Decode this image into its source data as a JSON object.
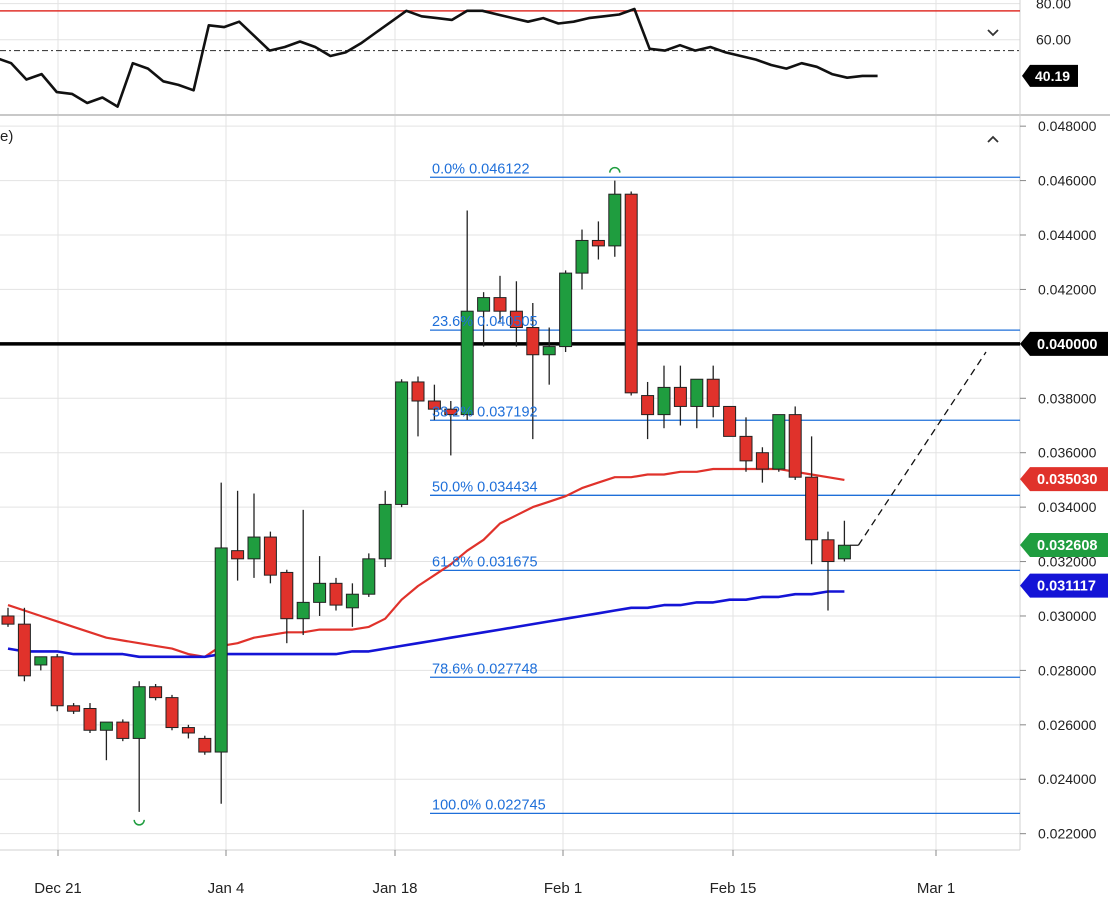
{
  "header": {
    "partial_label": "e)",
    "upper_collapse_icon": "chevron-down-icon",
    "main_collapse_icon": "chevron-up-icon"
  },
  "colors": {
    "up": "#1f9d3f",
    "down": "#e0322b",
    "ema_red": "#e0322b",
    "ema_blue": "#1414d6",
    "fib": "#1e6fd9",
    "grid": "#e3e3e3",
    "label_bg_dark": "#000000",
    "label_green": "#1f9d3f",
    "label_red": "#e0322b",
    "label_blue": "#1414d6"
  },
  "chart_data": [
    {
      "type": "line",
      "panel": "oscillator",
      "y_tick_labels": [
        "80.00",
        "60.00"
      ],
      "y_ticks": [
        80,
        60
      ],
      "ylim": [
        20,
        82
      ],
      "levels": [
        {
          "value": 76,
          "style": "solid",
          "color": "#e0322b"
        },
        {
          "value": 54,
          "style": "dashdot",
          "color": "#444444"
        }
      ],
      "last_value_label": "40.19",
      "series": [
        {
          "values": [
            50,
            47,
            38,
            41,
            31,
            30,
            25,
            28,
            23,
            47,
            44,
            37,
            35,
            32,
            68,
            67,
            70,
            62,
            54,
            56,
            59,
            56,
            51,
            53,
            58,
            64,
            70,
            76,
            73,
            72,
            71,
            76,
            76,
            74,
            72,
            70,
            72,
            69,
            70,
            72,
            73,
            74,
            77,
            55,
            54,
            57,
            54,
            56,
            53,
            51,
            49,
            46,
            44,
            47,
            45,
            41,
            39,
            40,
            40
          ]
        }
      ]
    },
    {
      "type": "candlestick",
      "panel": "price",
      "x_tick_labels": [
        "Dec 21",
        "Jan 4",
        "Jan 18",
        "Feb 1",
        "Feb 15",
        "Mar 1"
      ],
      "y_tick_labels": [
        "0.048000",
        "0.046000",
        "0.044000",
        "0.042000",
        "0.040000",
        "0.038000",
        "0.036000",
        "0.034000",
        "0.032000",
        "0.030000",
        "0.028000",
        "0.026000",
        "0.024000",
        "0.022000"
      ],
      "y_ticks": [
        0.048,
        0.046,
        0.044,
        0.042,
        0.04,
        0.038,
        0.036,
        0.034,
        0.032,
        0.03,
        0.028,
        0.026,
        0.024,
        0.022
      ],
      "ylim": [
        0.0214,
        0.0483
      ],
      "candles": [
        {
          "o": 0.03,
          "h": 0.0303,
          "l": 0.0296,
          "c": 0.0297
        },
        {
          "o": 0.0297,
          "h": 0.0303,
          "l": 0.0276,
          "c": 0.0278
        },
        {
          "o": 0.0282,
          "h": 0.0285,
          "l": 0.028,
          "c": 0.0285
        },
        {
          "o": 0.0285,
          "h": 0.0286,
          "l": 0.0265,
          "c": 0.0267
        },
        {
          "o": 0.0267,
          "h": 0.0268,
          "l": 0.0264,
          "c": 0.0265
        },
        {
          "o": 0.0266,
          "h": 0.0268,
          "l": 0.0257,
          "c": 0.0258
        },
        {
          "o": 0.0258,
          "h": 0.026,
          "l": 0.0247,
          "c": 0.0261
        },
        {
          "o": 0.0261,
          "h": 0.0262,
          "l": 0.0254,
          "c": 0.0255
        },
        {
          "o": 0.0255,
          "h": 0.0276,
          "l": 0.0228,
          "c": 0.0274
        },
        {
          "o": 0.0274,
          "h": 0.0275,
          "l": 0.0269,
          "c": 0.027
        },
        {
          "o": 0.027,
          "h": 0.0271,
          "l": 0.0258,
          "c": 0.0259
        },
        {
          "o": 0.0259,
          "h": 0.026,
          "l": 0.0255,
          "c": 0.0257
        },
        {
          "o": 0.0255,
          "h": 0.0256,
          "l": 0.0249,
          "c": 0.025
        },
        {
          "o": 0.025,
          "h": 0.0349,
          "l": 0.0231,
          "c": 0.0325
        },
        {
          "o": 0.0324,
          "h": 0.0346,
          "l": 0.0313,
          "c": 0.0321
        },
        {
          "o": 0.0321,
          "h": 0.0345,
          "l": 0.0314,
          "c": 0.0329
        },
        {
          "o": 0.0329,
          "h": 0.0331,
          "l": 0.0312,
          "c": 0.0315
        },
        {
          "o": 0.0316,
          "h": 0.0317,
          "l": 0.029,
          "c": 0.0299
        },
        {
          "o": 0.0299,
          "h": 0.0339,
          "l": 0.0293,
          "c": 0.0305
        },
        {
          "o": 0.0305,
          "h": 0.0322,
          "l": 0.03,
          "c": 0.0312
        },
        {
          "o": 0.0312,
          "h": 0.0314,
          "l": 0.0302,
          "c": 0.0304
        },
        {
          "o": 0.0303,
          "h": 0.0312,
          "l": 0.0296,
          "c": 0.0308
        },
        {
          "o": 0.0308,
          "h": 0.0323,
          "l": 0.0307,
          "c": 0.0321
        },
        {
          "o": 0.0321,
          "h": 0.0346,
          "l": 0.0318,
          "c": 0.0341
        },
        {
          "o": 0.0341,
          "h": 0.0387,
          "l": 0.034,
          "c": 0.0386
        },
        {
          "o": 0.0386,
          "h": 0.0388,
          "l": 0.0366,
          "c": 0.0379
        },
        {
          "o": 0.0379,
          "h": 0.0385,
          "l": 0.0372,
          "c": 0.0376
        },
        {
          "o": 0.0376,
          "h": 0.0379,
          "l": 0.0359,
          "c": 0.0374
        },
        {
          "o": 0.0374,
          "h": 0.0449,
          "l": 0.0372,
          "c": 0.0412
        },
        {
          "o": 0.0412,
          "h": 0.0419,
          "l": 0.0399,
          "c": 0.0417
        },
        {
          "o": 0.0417,
          "h": 0.0425,
          "l": 0.0408,
          "c": 0.0412
        },
        {
          "o": 0.0412,
          "h": 0.0423,
          "l": 0.0399,
          "c": 0.0406
        },
        {
          "o": 0.0406,
          "h": 0.0415,
          "l": 0.0365,
          "c": 0.0396
        },
        {
          "o": 0.0396,
          "h": 0.0406,
          "l": 0.0385,
          "c": 0.0399
        },
        {
          "o": 0.0399,
          "h": 0.0427,
          "l": 0.0397,
          "c": 0.0426
        },
        {
          "o": 0.0426,
          "h": 0.0442,
          "l": 0.042,
          "c": 0.0438
        },
        {
          "o": 0.0438,
          "h": 0.0445,
          "l": 0.0431,
          "c": 0.0436
        },
        {
          "o": 0.0436,
          "h": 0.046,
          "l": 0.0432,
          "c": 0.0455
        },
        {
          "o": 0.0455,
          "h": 0.0456,
          "l": 0.0381,
          "c": 0.0382
        },
        {
          "o": 0.0381,
          "h": 0.0386,
          "l": 0.0365,
          "c": 0.0374
        },
        {
          "o": 0.0374,
          "h": 0.0392,
          "l": 0.0369,
          "c": 0.0384
        },
        {
          "o": 0.0384,
          "h": 0.0392,
          "l": 0.037,
          "c": 0.0377
        },
        {
          "o": 0.0377,
          "h": 0.0386,
          "l": 0.0369,
          "c": 0.0387
        },
        {
          "o": 0.0387,
          "h": 0.0392,
          "l": 0.0373,
          "c": 0.0377
        },
        {
          "o": 0.0377,
          "h": 0.0377,
          "l": 0.0366,
          "c": 0.0366
        },
        {
          "o": 0.0366,
          "h": 0.0373,
          "l": 0.0353,
          "c": 0.0357
        },
        {
          "o": 0.036,
          "h": 0.0362,
          "l": 0.0349,
          "c": 0.0354
        },
        {
          "o": 0.0354,
          "h": 0.0374,
          "l": 0.0353,
          "c": 0.0374
        },
        {
          "o": 0.0374,
          "h": 0.0377,
          "l": 0.035,
          "c": 0.0351
        },
        {
          "o": 0.0351,
          "h": 0.0366,
          "l": 0.0319,
          "c": 0.0328
        },
        {
          "o": 0.0328,
          "h": 0.0331,
          "l": 0.0302,
          "c": 0.032
        },
        {
          "o": 0.0321,
          "h": 0.0335,
          "l": 0.032,
          "c": 0.0326
        }
      ],
      "ema_series": [
        {
          "color": "#e0322b",
          "values": [
            0.0304,
            0.0302,
            0.03,
            0.0298,
            0.0296,
            0.0294,
            0.0292,
            0.0291,
            0.029,
            0.0289,
            0.0288,
            0.0286,
            0.0285,
            0.0289,
            0.029,
            0.0292,
            0.0293,
            0.0294,
            0.0294,
            0.0295,
            0.0295,
            0.0295,
            0.0296,
            0.0299,
            0.0306,
            0.0311,
            0.0315,
            0.0319,
            0.0324,
            0.0328,
            0.0334,
            0.0337,
            0.034,
            0.0342,
            0.0344,
            0.0347,
            0.0349,
            0.0351,
            0.0351,
            0.0352,
            0.0352,
            0.0353,
            0.0353,
            0.0354,
            0.0354,
            0.0354,
            0.0354,
            0.0354,
            0.0353,
            0.0352,
            0.0351,
            0.035
          ]
        },
        {
          "color": "#1414d6",
          "values": [
            0.0288,
            0.0287,
            0.0287,
            0.0287,
            0.0286,
            0.0286,
            0.0286,
            0.0286,
            0.0285,
            0.0285,
            0.0285,
            0.0285,
            0.0285,
            0.0286,
            0.0286,
            0.0286,
            0.0286,
            0.0286,
            0.0286,
            0.0286,
            0.0286,
            0.0287,
            0.0287,
            0.0288,
            0.0289,
            0.029,
            0.0291,
            0.0292,
            0.0293,
            0.0294,
            0.0295,
            0.0296,
            0.0297,
            0.0298,
            0.0299,
            0.03,
            0.0301,
            0.0302,
            0.0303,
            0.0303,
            0.0304,
            0.0304,
            0.0305,
            0.0305,
            0.0306,
            0.0306,
            0.0307,
            0.0307,
            0.0308,
            0.0308,
            0.0309,
            0.0309
          ]
        }
      ],
      "horizontal_line": {
        "value": 0.04
      },
      "fib_levels": [
        {
          "label": "0.0% 0.046122",
          "value": 0.046122
        },
        {
          "label": "23.6% 0.040505",
          "value": 0.040505
        },
        {
          "label": "38.2% 0.037192",
          "value": 0.037192
        },
        {
          "label": "50.0% 0.034434",
          "value": 0.034434
        },
        {
          "label": "61.8% 0.031675",
          "value": 0.031675
        },
        {
          "label": "78.6% 0.027748",
          "value": 0.027748
        },
        {
          "label": "100.0% 0.022745",
          "value": 0.022745
        }
      ],
      "price_labels": [
        {
          "text": "0.040000",
          "value": 0.04,
          "style": "black"
        },
        {
          "text": "0.035030",
          "value": 0.03503,
          "style": "red"
        },
        {
          "text": "0.032608",
          "value": 0.032608,
          "style": "green"
        },
        {
          "text": "0.031117",
          "value": 0.031117,
          "style": "blue"
        }
      ],
      "projection_line": {
        "from": 0.0326,
        "to": 0.0397
      }
    }
  ]
}
